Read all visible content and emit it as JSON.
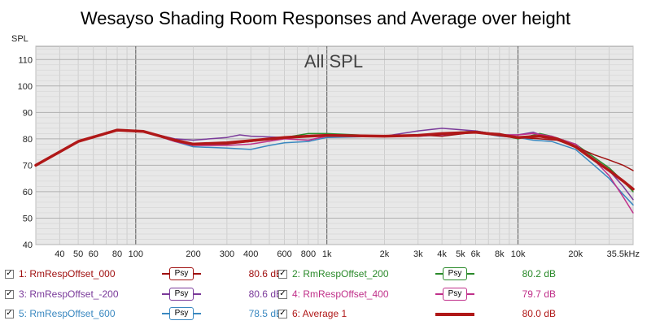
{
  "chart_data": {
    "type": "line",
    "title": "Wesayso Shading Room Responses and Average over height",
    "annotation": "All SPL",
    "ylabel": "SPL",
    "xscale": "log",
    "xlim": [
      30,
      40000
    ],
    "ylim": [
      40,
      115
    ],
    "yticks": [
      40,
      50,
      60,
      70,
      80,
      90,
      100,
      110
    ],
    "xticks": [
      {
        "v": 40,
        "label": "40"
      },
      {
        "v": 50,
        "label": "50"
      },
      {
        "v": 60,
        "label": "60"
      },
      {
        "v": 80,
        "label": "80"
      },
      {
        "v": 100,
        "label": "100"
      },
      {
        "v": 200,
        "label": "200"
      },
      {
        "v": 300,
        "label": "300"
      },
      {
        "v": 400,
        "label": "400"
      },
      {
        "v": 600,
        "label": "600"
      },
      {
        "v": 800,
        "label": "800"
      },
      {
        "v": 1000,
        "label": "1k"
      },
      {
        "v": 2000,
        "label": "2k"
      },
      {
        "v": 3000,
        "label": "3k"
      },
      {
        "v": 4000,
        "label": "4k"
      },
      {
        "v": 5000,
        "label": "5k"
      },
      {
        "v": 6000,
        "label": "6k"
      },
      {
        "v": 8000,
        "label": "8k"
      },
      {
        "v": 10000,
        "label": "10k"
      },
      {
        "v": 20000,
        "label": "20k"
      },
      {
        "v": 35500,
        "label": "35.5kHz"
      }
    ],
    "grid": true,
    "background": "#e8e8e8",
    "series": [
      {
        "name": "1: RmRespOffset_000",
        "color": "#a01010",
        "width": 1.5,
        "value_label": "80.6 dB",
        "x": [
          30,
          50,
          80,
          110,
          160,
          200,
          300,
          400,
          600,
          1000,
          2000,
          3000,
          4000,
          6000,
          8000,
          10000,
          13000,
          16000,
          20000,
          25000,
          30000,
          35500,
          40000
        ],
        "y": [
          70,
          79,
          83.3,
          82.8,
          79.5,
          77.8,
          78,
          79,
          80.5,
          81.5,
          81,
          81.5,
          81,
          82.5,
          82,
          80.5,
          80,
          79.5,
          77,
          74,
          72,
          70,
          68
        ]
      },
      {
        "name": "2: RmRespOffset_200",
        "color": "#2a8a2a",
        "width": 1.5,
        "value_label": "80.2 dB",
        "x": [
          30,
          50,
          80,
          110,
          160,
          200,
          300,
          400,
          600,
          800,
          1000,
          2000,
          3000,
          4000,
          6000,
          8000,
          10000,
          13000,
          15000,
          20000,
          25000,
          30000,
          35500,
          40000
        ],
        "y": [
          70,
          79,
          83.3,
          82.8,
          79.5,
          78,
          78.5,
          79.5,
          80.5,
          82,
          82,
          81,
          81.5,
          82,
          83,
          81.5,
          80,
          82,
          81,
          78,
          73,
          69,
          64,
          60
        ]
      },
      {
        "name": "3: RmRespOffset_-200",
        "color": "#7a3a9a",
        "width": 1.5,
        "value_label": "80.6 dB",
        "x": [
          30,
          50,
          80,
          110,
          160,
          200,
          300,
          350,
          400,
          600,
          1000,
          2000,
          3000,
          4000,
          6000,
          8000,
          10000,
          12000,
          15000,
          20000,
          25000,
          30000,
          35500,
          40000
        ],
        "y": [
          70,
          79,
          83.3,
          82.8,
          80,
          79.5,
          80.5,
          81.5,
          81,
          80.5,
          81.5,
          81,
          83,
          84,
          83,
          81.5,
          81.5,
          82.5,
          80,
          78,
          72,
          68,
          62,
          57
        ]
      },
      {
        "name": "4: RmRespOffset_400",
        "color": "#c0308a",
        "width": 1.5,
        "value_label": "79.7 dB",
        "x": [
          30,
          50,
          80,
          110,
          160,
          200,
          300,
          400,
          600,
          800,
          1000,
          2000,
          3000,
          4000,
          6000,
          8000,
          10000,
          12000,
          15000,
          20000,
          25000,
          30000,
          35500,
          40000
        ],
        "y": [
          70,
          79,
          83.3,
          82.8,
          79,
          77.5,
          77.5,
          78,
          80,
          79.5,
          81,
          81,
          81,
          81.5,
          82.5,
          81.5,
          81.5,
          82,
          81,
          78,
          72,
          66,
          58,
          52
        ]
      },
      {
        "name": "5: RmRespOffset_600",
        "color": "#3a88c0",
        "width": 1.5,
        "value_label": "78.5 dB",
        "x": [
          30,
          50,
          80,
          110,
          160,
          200,
          300,
          400,
          500,
          600,
          800,
          1000,
          2000,
          3000,
          4000,
          6000,
          8000,
          10000,
          12000,
          15000,
          20000,
          25000,
          30000,
          35500,
          40000
        ],
        "y": [
          70,
          79,
          83.3,
          82.8,
          79,
          77,
          76.5,
          76,
          77.5,
          78.5,
          79,
          80.5,
          81,
          81,
          81.5,
          82.5,
          81,
          80.5,
          79.5,
          79,
          76,
          70,
          65,
          59,
          55
        ]
      },
      {
        "name": "6: Average 1",
        "color": "#b01818",
        "width": 3.5,
        "value_label": "80.0 dB",
        "x": [
          30,
          50,
          80,
          110,
          160,
          200,
          300,
          400,
          600,
          800,
          1000,
          2000,
          3000,
          4000,
          6000,
          8000,
          10000,
          13000,
          16000,
          20000,
          25000,
          30000,
          35500,
          40000
        ],
        "y": [
          70,
          79,
          83.3,
          82.8,
          79.5,
          78,
          78.5,
          79.3,
          80.5,
          81,
          81.3,
          81,
          81.3,
          82,
          82.5,
          81.5,
          80.5,
          81,
          80,
          77,
          72,
          68,
          64,
          61
        ]
      }
    ]
  },
  "legend": [
    {
      "checked": "✓",
      "name": "1: RmRespOffset_000",
      "psy": "Psy",
      "value": "80.6 dB",
      "color": "#a01010",
      "style": "psy"
    },
    {
      "checked": "✓",
      "name": "2: RmRespOffset_200",
      "psy": "Psy",
      "value": "80.2 dB",
      "color": "#2a8a2a",
      "style": "psy"
    },
    {
      "checked": "✓",
      "name": "3: RmRespOffset_-200",
      "psy": "Psy",
      "value": "80.6 dB",
      "color": "#7a3a9a",
      "style": "psy"
    },
    {
      "checked": "✓",
      "name": "4: RmRespOffset_400",
      "psy": "Psy",
      "value": "79.7 dB",
      "color": "#c0308a",
      "style": "psy"
    },
    {
      "checked": "✓",
      "name": "5: RmRespOffset_600",
      "psy": "Psy",
      "value": "78.5 dB",
      "color": "#3a88c0",
      "style": "psy"
    },
    {
      "checked": "✓",
      "name": "6: Average 1",
      "psy": "",
      "value": "80.0 dB",
      "color": "#b01818",
      "style": "line"
    }
  ]
}
